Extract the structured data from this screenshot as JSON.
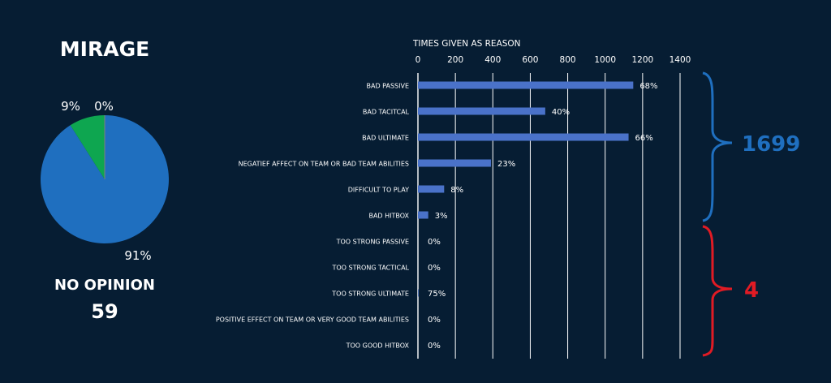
{
  "colors": {
    "background": "#061d33",
    "text": "#ffffff",
    "pie_blue": "#1f6fbf",
    "pie_green": "#0ea650",
    "bar": "#4a72c9",
    "axis": "#ffffff",
    "brace_blue": "#1f6fbf",
    "brace_red": "#e01b24"
  },
  "chart_data": [
    {
      "type": "pie",
      "title": "MIRAGE",
      "slices": [
        {
          "value": 91,
          "label": "91%",
          "color": "#1f6fbf"
        },
        {
          "value": 9,
          "label": "9%",
          "color": "#0ea650"
        },
        {
          "value": 0,
          "label": "0%",
          "color": "#7f7f7f"
        }
      ]
    },
    {
      "type": "bar",
      "orientation": "horizontal",
      "xlabel": "TIMES GIVEN AS REASON",
      "xlim": [
        0,
        1400
      ],
      "xticks": [
        0,
        200,
        400,
        600,
        800,
        1000,
        1200,
        1400
      ],
      "grid": true,
      "categories": [
        "BAD PASSIVE",
        "BAD TACITCAL",
        "BAD ULTIMATE",
        "NEGATIEF AFFECT ON TEAM OR BAD TEAM ABILITIES",
        "DIFFICULT TO PLAY",
        "BAD HITBOX",
        "TOO STRONG PASSIVE",
        "TOO STRONG TACTICAL",
        "TOO STRONG ULTIMATE",
        "POSITIVE EFFECT ON TEAM OR VERY GOOD TEAM ABILITIES",
        "TOO GOOD HITBOX"
      ],
      "values": [
        1150,
        680,
        1125,
        390,
        140,
        55,
        0,
        0,
        3,
        0,
        0
      ],
      "data_labels": [
        "68%",
        "40%",
        "66%",
        "23%",
        "8%",
        "3%",
        "0%",
        "0%",
        "75%",
        "0%",
        "0%"
      ]
    }
  ],
  "no_opinion": {
    "label": "NO OPINION",
    "value": "59"
  },
  "groups": [
    {
      "total": "1699",
      "color": "#1f6fbf"
    },
    {
      "total": "4",
      "color": "#e01b24"
    }
  ]
}
